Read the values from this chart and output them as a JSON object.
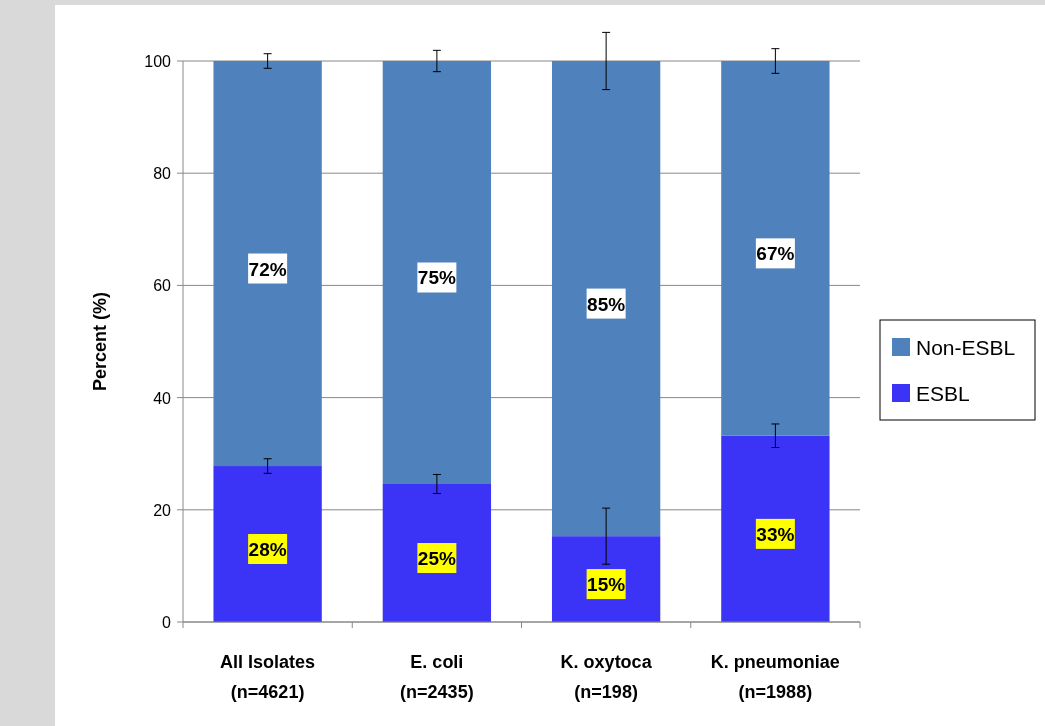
{
  "chart_data": {
    "type": "bar",
    "stacked": true,
    "ylabel": "Percent (%)",
    "categories": [
      "All Isolates\n(n=4621)",
      "E. coli\n(n=2435)",
      "K. oxytoca\n(n=198)",
      "K. pneumoniae\n(n=1988)"
    ],
    "series": [
      {
        "name": "ESBL",
        "color": "#3b33f5",
        "values": [
          27.8,
          24.6,
          15.3,
          33.2
        ],
        "errors": [
          1.3,
          1.7,
          5,
          2.1
        ],
        "value_labels": [
          "28%",
          "25%",
          "15%",
          "33%"
        ]
      },
      {
        "name": "Non-ESBL",
        "color": "#4f81bd",
        "values": [
          72.2,
          75.4,
          84.7,
          66.8
        ],
        "errors": [
          1.3,
          1.9,
          5.1,
          2.2
        ],
        "value_labels": [
          "72%",
          "75%",
          "85%",
          "67%"
        ]
      }
    ],
    "ylim": [
      0,
      100
    ],
    "yticks": [
      0,
      20,
      40,
      60,
      80,
      100
    ],
    "grid": "y",
    "legend": "right"
  }
}
